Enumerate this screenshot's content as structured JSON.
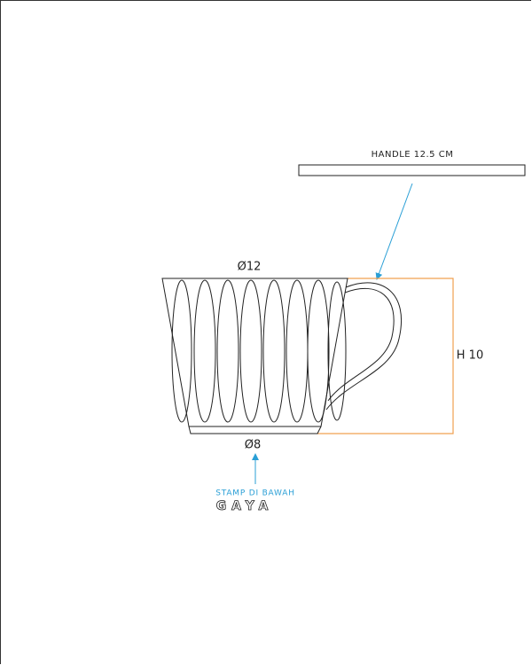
{
  "handle_label": "HANDLE 12.5 CM",
  "top_diameter": "Ø12",
  "bottom_diameter": "Ø8",
  "height_label": "H 10",
  "stamp_label": "STAMP DI BAWAH",
  "logo": "GAYA"
}
